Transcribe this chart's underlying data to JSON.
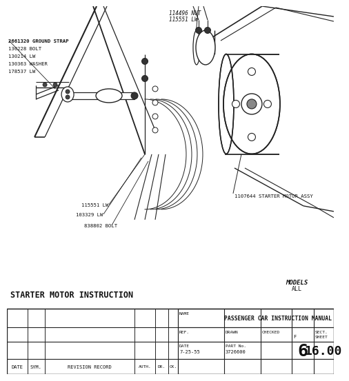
{
  "bg_color": "#ffffff",
  "diagram_bg": "#f8f7f5",
  "line_color": "#222222",
  "text_color": "#111111",
  "title_block": {
    "section_title": "STARTER MOTOR INSTRUCTION",
    "models_label": "MODELS",
    "models_value": "ALL",
    "manual_title": "PASSENGER CAR INSTRUCTION MANUAL",
    "ref_label": "REF.",
    "drawn_label": "DRAWN",
    "checked_label": "CHECKED",
    "f_label": "F",
    "sect_label": "SECT.",
    "sheet_label": "SHEET",
    "date_label": "DATE",
    "date_value": "7-25-55",
    "part_label": "PART No.",
    "part_value": "3726600",
    "sect_value": "6",
    "sheet_value": "16.00",
    "date_col_label": "DATE",
    "sym_col_label": "SYM.",
    "rev_col_label": "REVISION RECORD",
    "auth_col_label": "AUTH.",
    "dr_col_label": "DR.",
    "chk_col_label": "CK."
  },
  "labels": {
    "top_nut": "114496 NUT",
    "top_lw": "115551 LW",
    "ground_strap": "2661320 GROUND STRAP",
    "bolt1": "130228 BOLT",
    "lw1": "130214 LW",
    "washer": "130363 WASHER",
    "lw2": "178537 LW",
    "label_115551": "115551 LW",
    "label_103329": "103329 LW",
    "label_838802": "838802 BOLT",
    "label_motor": "1107644 STARTER MOTOR ASSY"
  }
}
